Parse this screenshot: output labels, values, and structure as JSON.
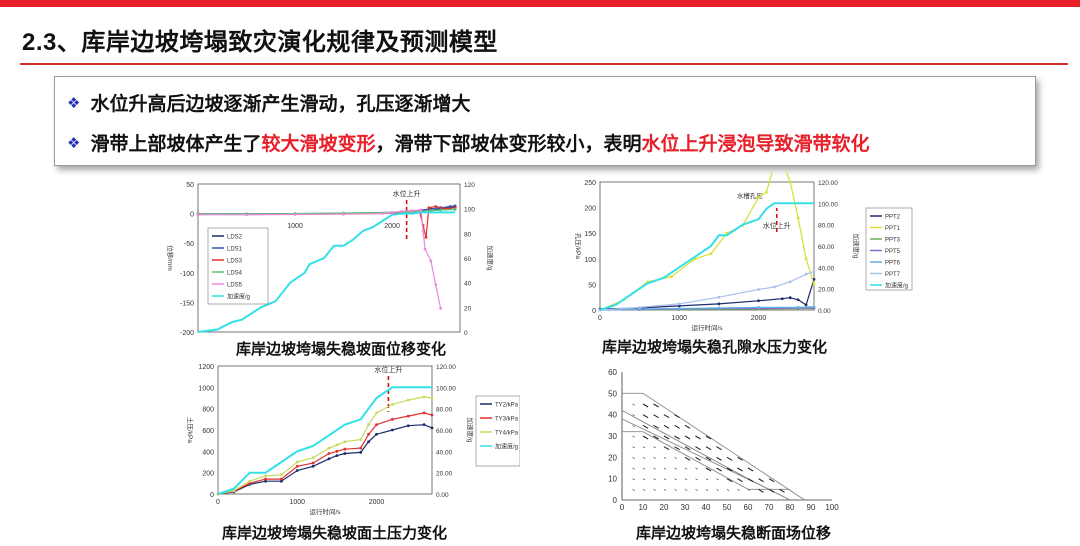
{
  "colors": {
    "accent_red": "#e8202a",
    "bullet_blue": "#2336b8",
    "cyan": "#33e0e8"
  },
  "page": {
    "title": "2.3、库岸边坡垮塌致灾演化规律及预测模型"
  },
  "bullets": {
    "b1": {
      "icon": "diamond-bullet-icon",
      "text": "水位升高后边坡逐渐产生滑动，孔压逐渐增大"
    },
    "b2": {
      "icon": "diamond-bullet-icon",
      "pre": "滑带上部坡体产生了",
      "hl1": "较大滑坡变形",
      "mid": "，滑带下部坡体变形较小，表明",
      "hl2": "水位上升浸泡导致滑带软化"
    }
  },
  "captions": {
    "c1": "库岸边坡垮塌失稳坡面位移变化",
    "c2": "库岸边坡垮塌失稳孔隙水压力变化",
    "c3": "库岸边坡垮塌失稳坡面土压力变化",
    "c4": "库岸边坡垮塌失稳断面场位移"
  },
  "chart_data": [
    {
      "type": "line",
      "xlim": [
        0,
        2700
      ],
      "x_ticks": [
        "1000",
        "2000"
      ],
      "ylim": [
        -200,
        50
      ],
      "y_ticks": [
        "50",
        "0",
        "-50",
        "-100",
        "-150",
        "-200"
      ],
      "ylabel": "位移/mm",
      "y2lim": [
        0,
        120
      ],
      "y2_ticks": [
        "120",
        "100",
        "80",
        "60",
        "40",
        "20",
        "0"
      ],
      "y2label": "加速度/g",
      "annotation": "水位上升",
      "annotation_x": 2150,
      "legend": [
        "LDS2",
        "LDS1",
        "LDS3",
        "LDS4",
        "LDS5",
        "加速度/g"
      ],
      "series": [
        {
          "name": "LDS2",
          "color": "#1a2b6b",
          "x": [
            0,
            500,
            1000,
            1500,
            2000,
            2100,
            2200,
            2300,
            2400,
            2500,
            2600,
            2650
          ],
          "y": [
            -1,
            -1,
            -0.5,
            0,
            1,
            2,
            3,
            4,
            5,
            8,
            10,
            12
          ]
        },
        {
          "name": "LDS1",
          "color": "#3a4fa8",
          "x": [
            0,
            500,
            1000,
            1500,
            2000,
            2100,
            2200,
            2300,
            2400,
            2500,
            2600,
            2650
          ],
          "y": [
            -0.5,
            -0.5,
            0,
            0.5,
            2,
            3,
            4,
            6,
            8,
            10,
            12,
            13
          ]
        },
        {
          "name": "LDS3",
          "color": "#e03030",
          "x": [
            0,
            500,
            1000,
            1500,
            2000,
            2100,
            2200,
            2280,
            2320,
            2350,
            2380,
            2450,
            2550,
            2650
          ],
          "y": [
            -1,
            -1,
            -0.5,
            0,
            1,
            2,
            3,
            5,
            -20,
            -40,
            10,
            12,
            8,
            10
          ]
        },
        {
          "name": "LDS4",
          "color": "#5fc07a",
          "x": [
            0,
            500,
            1000,
            1500,
            2000,
            2200,
            2350,
            2400,
            2500,
            2650
          ],
          "y": [
            -1,
            -0.5,
            0,
            1,
            2,
            3,
            4,
            5,
            6,
            7
          ]
        },
        {
          "name": "LDS5",
          "color": "#ee88dd",
          "x": [
            0,
            500,
            1000,
            1500,
            1900,
            2000,
            2100,
            2200,
            2300,
            2320,
            2340,
            2400,
            2450,
            2500
          ],
          "y": [
            -2,
            -2,
            -1.5,
            -1,
            0,
            2,
            4,
            5,
            6,
            -30,
            -60,
            -80,
            -120,
            -160
          ]
        },
        {
          "name": "加速度/g",
          "color": "#33e0e8",
          "axis": "y2",
          "x": [
            0,
            200,
            350,
            450,
            650,
            800,
            950,
            1100,
            1150,
            1300,
            1400,
            1500,
            1600,
            1700,
            1800,
            1900,
            2000,
            2100,
            2200,
            2300,
            2400,
            2500,
            2650
          ],
          "y": [
            0,
            2,
            8,
            10,
            20,
            25,
            40,
            48,
            55,
            60,
            70,
            70,
            75,
            82,
            85,
            90,
            95,
            96,
            96,
            97,
            97,
            97,
            97
          ]
        }
      ]
    },
    {
      "type": "line",
      "xlim": [
        0,
        2700
      ],
      "x_ticks": [
        "0",
        "1000",
        "2000"
      ],
      "xlabel": "运行时间/s",
      "ylim": [
        0,
        250
      ],
      "y_ticks": [
        "250",
        "200",
        "150",
        "100",
        "50",
        "0"
      ],
      "ylabel": "孔压/kPa",
      "y2lim": [
        0,
        120
      ],
      "y2_ticks": [
        "120.00",
        "100.00",
        "80.00",
        "60.00",
        "40.00",
        "20.00",
        "0.00"
      ],
      "y2label": "加速度/g",
      "annotation": "水位上升",
      "annotation2": "水槽孔压",
      "annotation_x": 2230,
      "legend": [
        "PPT2",
        "PPT1",
        "PPT3",
        "PPT5",
        "PPT6",
        "PPT7",
        "加速度/g"
      ],
      "series": [
        {
          "name": "PPT2",
          "color": "#1a2b6b",
          "x": [
            0,
            500,
            1000,
            1500,
            2000,
            2300,
            2400,
            2500,
            2600,
            2700
          ],
          "y": [
            2,
            4,
            8,
            12,
            18,
            22,
            24,
            20,
            10,
            60
          ]
        },
        {
          "name": "PPT1",
          "color": "#d8df30",
          "x": [
            0,
            300,
            600,
            900,
            1200,
            1400,
            1600,
            1800,
            2000,
            2100,
            2200,
            2300,
            2400,
            2500,
            2600,
            2700
          ],
          "y": [
            0,
            20,
            55,
            65,
            100,
            110,
            150,
            165,
            220,
            230,
            285,
            290,
            250,
            180,
            100,
            50
          ]
        },
        {
          "name": "PPT3",
          "color": "#6fb050",
          "x": [
            0,
            500,
            1000,
            1500,
            2000,
            2500,
            2700
          ],
          "y": [
            0,
            1,
            1,
            2,
            2,
            3,
            3
          ]
        },
        {
          "name": "PPT5",
          "color": "#8a6ad0",
          "x": [
            0,
            500,
            1000,
            1500,
            2000,
            2500,
            2700
          ],
          "y": [
            0,
            1,
            2,
            3,
            3,
            4,
            4
          ]
        },
        {
          "name": "PPT6",
          "color": "#5fb0e0",
          "x": [
            0,
            500,
            1000,
            1500,
            2000,
            2500,
            2700
          ],
          "y": [
            0,
            2,
            3,
            4,
            5,
            5,
            6
          ]
        },
        {
          "name": "PPT7",
          "color": "#aac0ec",
          "x": [
            0,
            500,
            1000,
            1500,
            2000,
            2200,
            2400,
            2600,
            2700
          ],
          "y": [
            0,
            5,
            12,
            25,
            40,
            45,
            55,
            70,
            75
          ]
        },
        {
          "name": "加速度/g",
          "color": "#33e0e8",
          "axis": "y2",
          "x": [
            0,
            200,
            400,
            600,
            800,
            1000,
            1200,
            1400,
            1500,
            1600,
            1800,
            2000,
            2100,
            2200,
            2300,
            2500,
            2700
          ],
          "y": [
            0,
            5,
            15,
            25,
            30,
            40,
            50,
            60,
            70,
            70,
            80,
            85,
            95,
            100,
            100,
            100,
            100
          ]
        }
      ]
    },
    {
      "type": "line",
      "xlim": [
        0,
        2700
      ],
      "x_ticks": [
        "0",
        "1000",
        "2000"
      ],
      "xlabel": "运行时间/s",
      "ylim": [
        0,
        1200
      ],
      "y_ticks": [
        "1200",
        "1000",
        "800",
        "600",
        "400",
        "200",
        "0"
      ],
      "ylabel": "土压/kPa",
      "y2lim": [
        0,
        120
      ],
      "y2_ticks": [
        "120.00",
        "100.00",
        "80.00",
        "60.00",
        "40.00",
        "20.00",
        "0.00"
      ],
      "y2label": "加速度/g",
      "annotation": "水位上升",
      "annotation_x": 2150,
      "legend": [
        "TY2/kPa",
        "TY3/kPa",
        "TY4/kPa",
        "加速度/g"
      ],
      "series": [
        {
          "name": "TY2/kPa",
          "color": "#1a2b6b",
          "x": [
            0,
            200,
            400,
            600,
            800,
            1000,
            1200,
            1400,
            1500,
            1600,
            1800,
            1900,
            2000,
            2200,
            2400,
            2600,
            2700
          ],
          "y": [
            0,
            20,
            90,
            120,
            120,
            220,
            260,
            330,
            360,
            380,
            390,
            490,
            560,
            600,
            640,
            650,
            620
          ]
        },
        {
          "name": "TY3/kPa",
          "color": "#e03030",
          "x": [
            0,
            200,
            400,
            600,
            800,
            1000,
            1200,
            1400,
            1500,
            1600,
            1800,
            1900,
            2000,
            2200,
            2400,
            2600,
            2700
          ],
          "y": [
            0,
            25,
            100,
            140,
            140,
            260,
            290,
            380,
            400,
            420,
            430,
            560,
            650,
            700,
            730,
            760,
            740
          ]
        },
        {
          "name": "TY4/kPa",
          "color": "#c8d860",
          "x": [
            0,
            200,
            400,
            600,
            800,
            1000,
            1200,
            1400,
            1500,
            1600,
            1800,
            1900,
            2000,
            2200,
            2400,
            2600,
            2700
          ],
          "y": [
            0,
            30,
            120,
            170,
            180,
            300,
            340,
            430,
            460,
            490,
            510,
            650,
            760,
            840,
            880,
            910,
            900
          ]
        },
        {
          "name": "加速度/g",
          "color": "#33e0e8",
          "axis": "y2",
          "x": [
            0,
            200,
            400,
            600,
            800,
            1000,
            1200,
            1400,
            1500,
            1600,
            1800,
            1900,
            2000,
            2100,
            2200,
            2400,
            2700
          ],
          "y": [
            0,
            5,
            20,
            20,
            30,
            40,
            45,
            55,
            60,
            65,
            70,
            80,
            90,
            95,
            100,
            100,
            100
          ]
        }
      ]
    },
    {
      "type": "vector-field",
      "xlim": [
        0,
        100
      ],
      "x_ticks": [
        "0",
        "10",
        "20",
        "30",
        "40",
        "50",
        "60",
        "70",
        "80",
        "90",
        "100"
      ],
      "ylim": [
        0,
        60
      ],
      "y_ticks": [
        "0",
        "10",
        "20",
        "30",
        "40",
        "50",
        "60"
      ],
      "boundaries": [
        {
          "x": [
            0,
            10,
            87
          ],
          "y": [
            50,
            50,
            0
          ]
        },
        {
          "x": [
            0,
            60,
            80
          ],
          "y": [
            42,
            10,
            0
          ]
        },
        {
          "x": [
            0,
            70,
            80
          ],
          "y": [
            38,
            5,
            0
          ]
        },
        {
          "x": [
            0,
            10,
            60,
            80
          ],
          "y": [
            32,
            32,
            5,
            5
          ]
        }
      ]
    }
  ]
}
